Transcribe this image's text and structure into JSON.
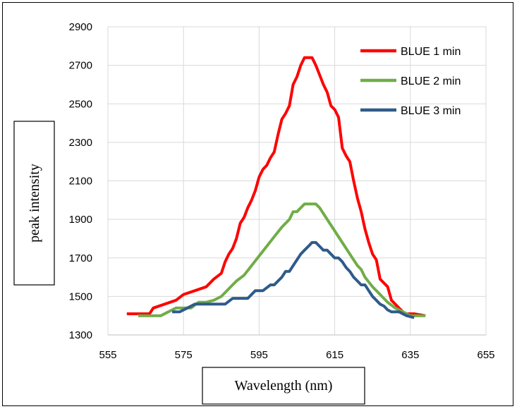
{
  "chart_data": {
    "type": "line",
    "xlabel": "Wavelength (nm)",
    "ylabel": "peak intensity",
    "xlim": [
      555,
      655
    ],
    "ylim": [
      1300,
      2900
    ],
    "xticks": [
      555,
      575,
      595,
      615,
      635,
      655
    ],
    "yticks": [
      1300,
      1500,
      1700,
      1900,
      2100,
      2300,
      2500,
      2700,
      2900
    ],
    "grid": "vertical and horizontal",
    "legend_position": "top-right",
    "series": [
      {
        "name": "BLUE 1 min",
        "color": "#ff0000",
        "points": [
          [
            560,
            1410
          ],
          [
            562,
            1410
          ],
          [
            564,
            1410
          ],
          [
            566,
            1410
          ],
          [
            567,
            1440
          ],
          [
            570,
            1460
          ],
          [
            573,
            1480
          ],
          [
            575,
            1510
          ],
          [
            578,
            1530
          ],
          [
            581,
            1550
          ],
          [
            583,
            1590
          ],
          [
            585,
            1620
          ],
          [
            586,
            1680
          ],
          [
            587,
            1720
          ],
          [
            588,
            1750
          ],
          [
            589,
            1800
          ],
          [
            590,
            1880
          ],
          [
            591,
            1910
          ],
          [
            592,
            1960
          ],
          [
            593,
            2000
          ],
          [
            594,
            2050
          ],
          [
            595,
            2120
          ],
          [
            596,
            2160
          ],
          [
            597,
            2180
          ],
          [
            598,
            2220
          ],
          [
            599,
            2250
          ],
          [
            600,
            2340
          ],
          [
            601,
            2420
          ],
          [
            602,
            2450
          ],
          [
            603,
            2490
          ],
          [
            604,
            2600
          ],
          [
            605,
            2640
          ],
          [
            606,
            2700
          ],
          [
            607,
            2740
          ],
          [
            608,
            2740
          ],
          [
            609,
            2740
          ],
          [
            610,
            2700
          ],
          [
            611,
            2650
          ],
          [
            612,
            2600
          ],
          [
            613,
            2560
          ],
          [
            614,
            2490
          ],
          [
            615,
            2470
          ],
          [
            616,
            2430
          ],
          [
            617,
            2270
          ],
          [
            618,
            2230
          ],
          [
            619,
            2200
          ],
          [
            620,
            2100
          ],
          [
            621,
            2010
          ],
          [
            622,
            1940
          ],
          [
            623,
            1850
          ],
          [
            624,
            1780
          ],
          [
            625,
            1720
          ],
          [
            626,
            1690
          ],
          [
            627,
            1590
          ],
          [
            628,
            1570
          ],
          [
            629,
            1550
          ],
          [
            630,
            1480
          ],
          [
            631,
            1460
          ],
          [
            632,
            1440
          ],
          [
            633,
            1420
          ],
          [
            634,
            1410
          ],
          [
            636,
            1410
          ],
          [
            639,
            1400
          ]
        ]
      },
      {
        "name": "BLUE 2 min",
        "color": "#70ad47",
        "points": [
          [
            563,
            1400
          ],
          [
            565,
            1400
          ],
          [
            567,
            1400
          ],
          [
            569,
            1400
          ],
          [
            571,
            1420
          ],
          [
            573,
            1440
          ],
          [
            575,
            1440
          ],
          [
            577,
            1440
          ],
          [
            579,
            1470
          ],
          [
            581,
            1470
          ],
          [
            583,
            1480
          ],
          [
            585,
            1500
          ],
          [
            587,
            1540
          ],
          [
            589,
            1580
          ],
          [
            591,
            1610
          ],
          [
            593,
            1660
          ],
          [
            595,
            1710
          ],
          [
            597,
            1760
          ],
          [
            599,
            1810
          ],
          [
            601,
            1860
          ],
          [
            603,
            1900
          ],
          [
            604,
            1940
          ],
          [
            605,
            1940
          ],
          [
            606,
            1960
          ],
          [
            607,
            1980
          ],
          [
            608,
            1980
          ],
          [
            609,
            1980
          ],
          [
            610,
            1980
          ],
          [
            611,
            1960
          ],
          [
            613,
            1900
          ],
          [
            615,
            1840
          ],
          [
            617,
            1780
          ],
          [
            619,
            1720
          ],
          [
            621,
            1660
          ],
          [
            622,
            1640
          ],
          [
            623,
            1600
          ],
          [
            625,
            1550
          ],
          [
            627,
            1510
          ],
          [
            629,
            1470
          ],
          [
            631,
            1440
          ],
          [
            633,
            1420
          ],
          [
            635,
            1400
          ],
          [
            637,
            1400
          ],
          [
            639,
            1400
          ]
        ]
      },
      {
        "name": "BLUE 3 min",
        "color": "#2e5b8a",
        "points": [
          [
            572,
            1420
          ],
          [
            574,
            1420
          ],
          [
            576,
            1440
          ],
          [
            578,
            1460
          ],
          [
            580,
            1460
          ],
          [
            582,
            1460
          ],
          [
            584,
            1460
          ],
          [
            586,
            1460
          ],
          [
            588,
            1490
          ],
          [
            590,
            1490
          ],
          [
            592,
            1490
          ],
          [
            594,
            1530
          ],
          [
            596,
            1530
          ],
          [
            598,
            1560
          ],
          [
            599,
            1560
          ],
          [
            600,
            1580
          ],
          [
            601,
            1600
          ],
          [
            602,
            1630
          ],
          [
            603,
            1630
          ],
          [
            604,
            1660
          ],
          [
            605,
            1690
          ],
          [
            606,
            1720
          ],
          [
            607,
            1740
          ],
          [
            608,
            1760
          ],
          [
            609,
            1780
          ],
          [
            610,
            1780
          ],
          [
            611,
            1760
          ],
          [
            612,
            1740
          ],
          [
            613,
            1740
          ],
          [
            614,
            1720
          ],
          [
            615,
            1700
          ],
          [
            616,
            1700
          ],
          [
            617,
            1680
          ],
          [
            618,
            1650
          ],
          [
            619,
            1630
          ],
          [
            620,
            1600
          ],
          [
            621,
            1580
          ],
          [
            622,
            1560
          ],
          [
            623,
            1560
          ],
          [
            624,
            1530
          ],
          [
            625,
            1500
          ],
          [
            626,
            1480
          ],
          [
            627,
            1460
          ],
          [
            628,
            1450
          ],
          [
            629,
            1430
          ],
          [
            630,
            1420
          ],
          [
            632,
            1420
          ],
          [
            634,
            1400
          ],
          [
            636,
            1390
          ]
        ]
      }
    ]
  }
}
